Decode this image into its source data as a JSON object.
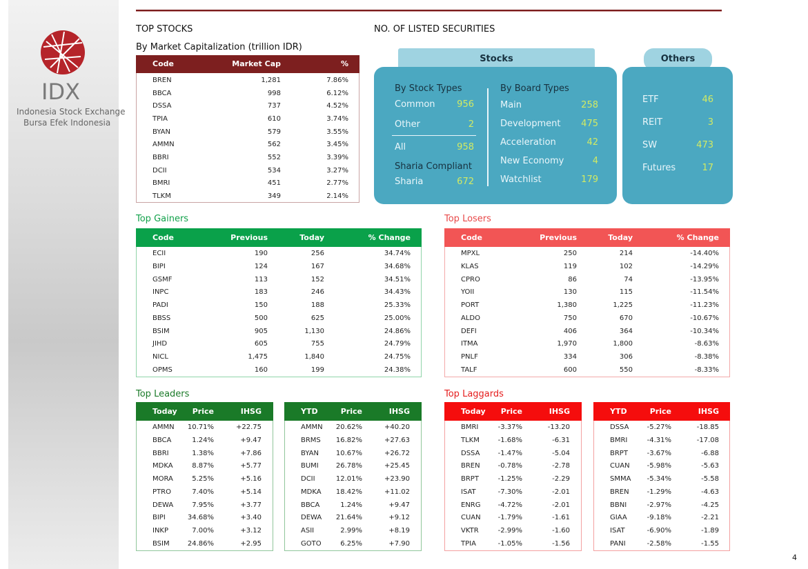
{
  "sidebar": {
    "logo": "IDX",
    "line1": "Indonesia Stock Exchange",
    "line2": "Bursa Efek Indonesia"
  },
  "top_stocks": {
    "title": "TOP STOCKS",
    "subtitle": "By Market Capitalization (trillion IDR)",
    "table": {
      "header": [
        "Code",
        "Market Cap",
        "%"
      ],
      "rows": [
        [
          "BREN",
          "1,281",
          "7.86%"
        ],
        [
          "BBCA",
          "998",
          "6.12%"
        ],
        [
          "DSSA",
          "737",
          "4.52%"
        ],
        [
          "TPIA",
          "610",
          "3.74%"
        ],
        [
          "BYAN",
          "579",
          "3.55%"
        ],
        [
          "AMMN",
          "562",
          "3.45%"
        ],
        [
          "BBRI",
          "552",
          "3.39%"
        ],
        [
          "DCII",
          "534",
          "3.27%"
        ],
        [
          "BMRI",
          "451",
          "2.77%"
        ],
        [
          "TLKM",
          "349",
          "2.14%"
        ]
      ]
    }
  },
  "listed": {
    "title": "NO. OF LISTED SECURITIES",
    "stocks": {
      "label": "Stocks",
      "stock_types": {
        "heading": "By Stock Types",
        "items": [
          {
            "label": "Common",
            "value": "956"
          },
          {
            "label": "Other",
            "value": "2"
          }
        ],
        "total": {
          "label": "All",
          "value": "958"
        }
      },
      "sharia": {
        "heading": "Sharia Compliant",
        "label": "Sharia",
        "value": "672"
      },
      "board_types": {
        "heading": "By Board Types",
        "items": [
          {
            "label": "Main",
            "value": "258"
          },
          {
            "label": "Development",
            "value": "475"
          },
          {
            "label": "Acceleration",
            "value": "42"
          },
          {
            "label": "New Economy",
            "value": "4"
          },
          {
            "label": "Watchlist",
            "value": "179"
          }
        ]
      }
    },
    "others": {
      "label": "Others",
      "items": [
        {
          "label": "ETF",
          "value": "46"
        },
        {
          "label": "REIT",
          "value": "3"
        },
        {
          "label": "SW",
          "value": "473"
        },
        {
          "label": "Futures",
          "value": "17"
        }
      ]
    }
  },
  "gainers": {
    "title": "Top Gainers",
    "table": {
      "header": [
        "Code",
        "Previous",
        "Today",
        "% Change"
      ],
      "rows": [
        [
          "ECII",
          "190",
          "256",
          "34.74%"
        ],
        [
          "BIPI",
          "124",
          "167",
          "34.68%"
        ],
        [
          "GSMF",
          "113",
          "152",
          "34.51%"
        ],
        [
          "INPC",
          "183",
          "246",
          "34.43%"
        ],
        [
          "PADI",
          "150",
          "188",
          "25.33%"
        ],
        [
          "BBSS",
          "500",
          "625",
          "25.00%"
        ],
        [
          "BSIM",
          "905",
          "1,130",
          "24.86%"
        ],
        [
          "JIHD",
          "605",
          "755",
          "24.79%"
        ],
        [
          "NICL",
          "1,475",
          "1,840",
          "24.75%"
        ],
        [
          "OPMS",
          "160",
          "199",
          "24.38%"
        ]
      ]
    }
  },
  "losers": {
    "title": "Top Losers",
    "table": {
      "header": [
        "Code",
        "Previous",
        "Today",
        "% Change"
      ],
      "rows": [
        [
          "MPXL",
          "250",
          "214",
          "-14.40%"
        ],
        [
          "KLAS",
          "119",
          "102",
          "-14.29%"
        ],
        [
          "CPRO",
          "86",
          "74",
          "-13.95%"
        ],
        [
          "YOII",
          "130",
          "115",
          "-11.54%"
        ],
        [
          "PORT",
          "1,380",
          "1,225",
          "-11.23%"
        ],
        [
          "ALDO",
          "750",
          "670",
          "-10.67%"
        ],
        [
          "DEFI",
          "406",
          "364",
          "-10.34%"
        ],
        [
          "ITMA",
          "1,970",
          "1,800",
          "-8.63%"
        ],
        [
          "PNLF",
          "334",
          "306",
          "-8.38%"
        ],
        [
          "TALF",
          "600",
          "550",
          "-8.33%"
        ]
      ]
    }
  },
  "leaders": {
    "title": "Top Leaders",
    "today": {
      "header": [
        "Today",
        "Price",
        "IHSG"
      ],
      "rows": [
        [
          "AMMN",
          "10.71%",
          "+22.75"
        ],
        [
          "BBCA",
          "1.24%",
          "+9.47"
        ],
        [
          "BBRI",
          "1.38%",
          "+7.86"
        ],
        [
          "MDKA",
          "8.87%",
          "+5.77"
        ],
        [
          "MORA",
          "5.25%",
          "+5.16"
        ],
        [
          "PTRO",
          "7.40%",
          "+5.14"
        ],
        [
          "DEWA",
          "7.95%",
          "+3.77"
        ],
        [
          "BIPI",
          "34.68%",
          "+3.40"
        ],
        [
          "INKP",
          "7.00%",
          "+3.12"
        ],
        [
          "BSIM",
          "24.86%",
          "+2.95"
        ]
      ]
    },
    "ytd": {
      "header": [
        "YTD",
        "Price",
        "IHSG"
      ],
      "rows": [
        [
          "AMMN",
          "20.62%",
          "+40.20"
        ],
        [
          "BRMS",
          "16.82%",
          "+27.63"
        ],
        [
          "BYAN",
          "10.67%",
          "+26.72"
        ],
        [
          "BUMI",
          "26.78%",
          "+25.45"
        ],
        [
          "DCII",
          "12.01%",
          "+23.90"
        ],
        [
          "MDKA",
          "18.42%",
          "+11.02"
        ],
        [
          "BBCA",
          "1.24%",
          "+9.47"
        ],
        [
          "DEWA",
          "21.64%",
          "+9.12"
        ],
        [
          "ASII",
          "2.99%",
          "+8.19"
        ],
        [
          "GOTO",
          "6.25%",
          "+7.90"
        ]
      ]
    }
  },
  "laggards": {
    "title": "Top Laggards",
    "today": {
      "header": [
        "Today",
        "Price",
        "IHSG"
      ],
      "rows": [
        [
          "BMRI",
          "-3.37%",
          "-13.20"
        ],
        [
          "TLKM",
          "-1.68%",
          "-6.31"
        ],
        [
          "DSSA",
          "-1.47%",
          "-5.04"
        ],
        [
          "BREN",
          "-0.78%",
          "-2.78"
        ],
        [
          "BRPT",
          "-1.25%",
          "-2.29"
        ],
        [
          "ISAT",
          "-7.30%",
          "-2.01"
        ],
        [
          "ENRG",
          "-4.72%",
          "-2.01"
        ],
        [
          "CUAN",
          "-1.79%",
          "-1.61"
        ],
        [
          "VKTR",
          "-2.99%",
          "-1.60"
        ],
        [
          "TPIA",
          "-1.05%",
          "-1.56"
        ]
      ]
    },
    "ytd": {
      "header": [
        "YTD",
        "Price",
        "IHSG"
      ],
      "rows": [
        [
          "DSSA",
          "-5.27%",
          "-18.85"
        ],
        [
          "BMRI",
          "-4.31%",
          "-17.08"
        ],
        [
          "BRPT",
          "-3.67%",
          "-6.88"
        ],
        [
          "CUAN",
          "-5.98%",
          "-5.63"
        ],
        [
          "SMMA",
          "-5.34%",
          "-5.58"
        ],
        [
          "BREN",
          "-1.29%",
          "-4.63"
        ],
        [
          "BBNI",
          "-2.97%",
          "-4.25"
        ],
        [
          "GIAA",
          "-9.18%",
          "-2.21"
        ],
        [
          "ISAT",
          "-6.90%",
          "-1.89"
        ],
        [
          "PANI",
          "-2.58%",
          "-1.55"
        ]
      ]
    }
  },
  "page_number": "4"
}
